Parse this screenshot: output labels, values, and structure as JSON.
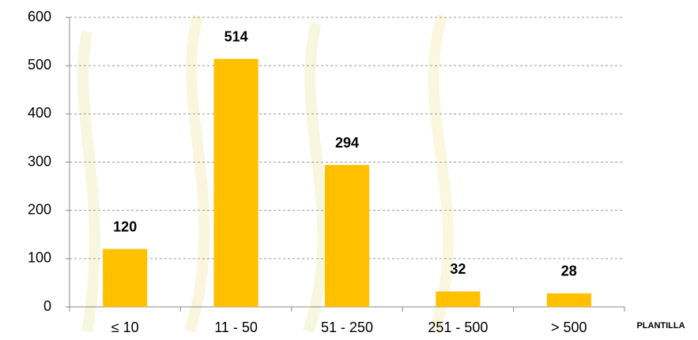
{
  "chart_data": {
    "type": "bar",
    "categories": [
      "≤ 10",
      "11 - 50",
      "51 - 250",
      "251 - 500",
      "> 500"
    ],
    "values": [
      120,
      514,
      294,
      32,
      28
    ],
    "color": "#ffc000",
    "x_label": "PLANTILLA",
    "ylim": [
      0,
      600
    ],
    "yticks": [
      0,
      100,
      200,
      300,
      400,
      500,
      600
    ],
    "grid": true
  }
}
